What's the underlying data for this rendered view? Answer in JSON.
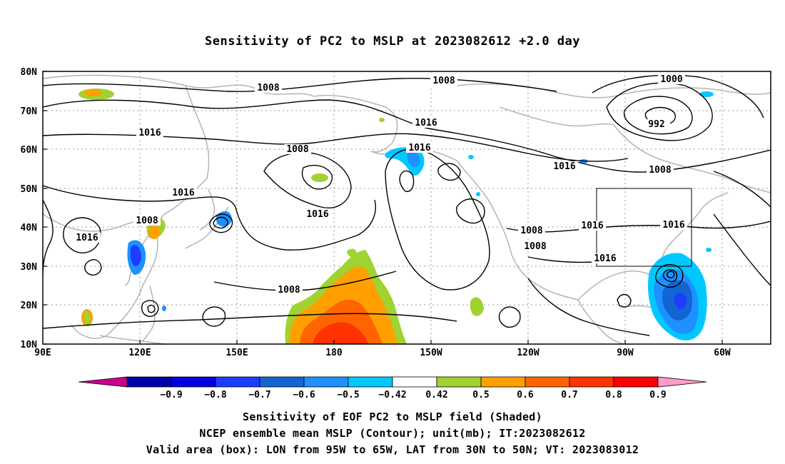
{
  "title": "Sensitivity of PC2 to MSLP at 2023082612 +2.0 day",
  "axes": {
    "lat_labels": [
      "80N",
      "70N",
      "60N",
      "50N",
      "40N",
      "30N",
      "20N",
      "10N"
    ],
    "lon_labels": [
      "90E",
      "120E",
      "150E",
      "180",
      "150W",
      "120W",
      "90W",
      "60W"
    ]
  },
  "contour_labels": [
    {
      "text": "1008"
    },
    {
      "text": "1008"
    },
    {
      "text": "1000"
    },
    {
      "text": "992"
    },
    {
      "text": "1016"
    },
    {
      "text": "1016"
    },
    {
      "text": "1016"
    },
    {
      "text": "1008"
    },
    {
      "text": "1016"
    },
    {
      "text": "1008"
    },
    {
      "text": "1016"
    },
    {
      "text": "1016"
    },
    {
      "text": "1008"
    },
    {
      "text": "1016"
    },
    {
      "text": "1008"
    },
    {
      "text": "1016"
    },
    {
      "text": "1016"
    },
    {
      "text": "1008"
    },
    {
      "text": "1016"
    },
    {
      "text": "1008"
    }
  ],
  "colorbar": {
    "labels": [
      "−0.9",
      "−0.8",
      "−0.7",
      "−0.6",
      "−0.5",
      "−0.42",
      "0.42",
      "0.5",
      "0.6",
      "0.7",
      "0.8",
      "0.9"
    ],
    "colors": [
      "#0000a8",
      "#0000e0",
      "#1e3cff",
      "#1464d2",
      "#1e90ff",
      "#00c8ff",
      "#ffffff",
      "#a0d232",
      "#ffa000",
      "#ff6400",
      "#ff3200",
      "#ff0000"
    ],
    "left_arrow_color": "#c8008c",
    "right_arrow_color": "#ff9bc8"
  },
  "captions": {
    "line1": "Sensitivity of EOF PC2 to MSLP field (Shaded)",
    "line2": "NCEP ensemble mean MSLP (Contour); unit(mb); IT:2023082612",
    "line3": "Valid area (box): LON from 95W to 65W, LAT from 30N to 50N; VT: 2023083012"
  }
}
